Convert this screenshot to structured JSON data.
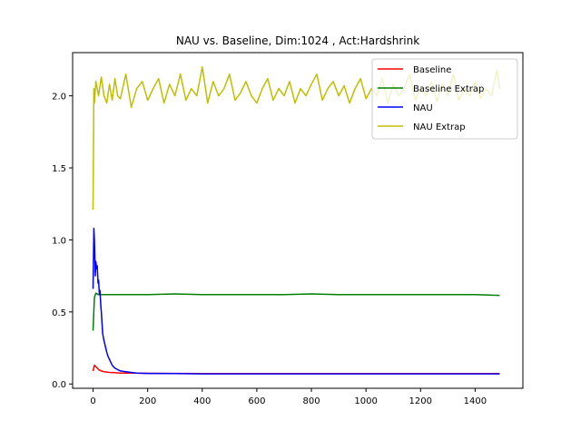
{
  "chart_data": {
    "type": "line",
    "title": "NAU vs. Baseline, Dim:1024 , Act:Hardshrink",
    "xlabel": "",
    "ylabel": "",
    "xlim": [
      -75,
      1575
    ],
    "ylim": [
      -0.03,
      2.3
    ],
    "xticks": [
      0,
      200,
      400,
      600,
      800,
      1000,
      1200,
      1400
    ],
    "yticks": [
      0.0,
      0.5,
      1.0,
      1.5,
      2.0
    ],
    "xtick_labels": [
      "0",
      "200",
      "400",
      "600",
      "800",
      "1000",
      "1200",
      "1400"
    ],
    "ytick_labels": [
      "0.0",
      "0.5",
      "1.0",
      "1.5",
      "2.0"
    ],
    "grid": false,
    "legend_position": "top-right",
    "series": [
      {
        "name": "Baseline",
        "color": "#ff0000",
        "x": [
          0,
          5,
          10,
          20,
          30,
          40,
          60,
          80,
          100,
          150,
          200,
          300,
          400,
          600,
          800,
          1000,
          1200,
          1400,
          1490
        ],
        "values": [
          0.09,
          0.13,
          0.12,
          0.1,
          0.09,
          0.085,
          0.08,
          0.078,
          0.076,
          0.075,
          0.074,
          0.073,
          0.072,
          0.072,
          0.072,
          0.072,
          0.072,
          0.072,
          0.072
        ]
      },
      {
        "name": "Baseline Extrap",
        "color": "#008000",
        "x": [
          0,
          5,
          10,
          20,
          50,
          100,
          200,
          300,
          400,
          500,
          600,
          700,
          800,
          900,
          1000,
          1100,
          1200,
          1300,
          1400,
          1490
        ],
        "values": [
          0.37,
          0.6,
          0.63,
          0.62,
          0.62,
          0.62,
          0.62,
          0.625,
          0.62,
          0.62,
          0.62,
          0.62,
          0.625,
          0.62,
          0.62,
          0.62,
          0.62,
          0.62,
          0.62,
          0.615
        ]
      },
      {
        "name": "NAU",
        "color": "#0000ff",
        "x": [
          0,
          3,
          5,
          8,
          10,
          13,
          15,
          18,
          20,
          23,
          25,
          28,
          30,
          35,
          40,
          45,
          50,
          55,
          60,
          65,
          70,
          80,
          90,
          100,
          120,
          140,
          160,
          200,
          300,
          400,
          600,
          800,
          1000,
          1200,
          1400,
          1490
        ],
        "values": [
          0.66,
          1.08,
          1.0,
          0.75,
          0.85,
          0.8,
          0.82,
          0.7,
          0.72,
          0.62,
          0.65,
          0.55,
          0.5,
          0.35,
          0.3,
          0.26,
          0.22,
          0.19,
          0.17,
          0.15,
          0.13,
          0.11,
          0.1,
          0.09,
          0.085,
          0.08,
          0.075,
          0.073,
          0.072,
          0.07,
          0.07,
          0.07,
          0.07,
          0.07,
          0.07,
          0.07
        ]
      },
      {
        "name": "NAU Extrap",
        "color": "#bfbf00",
        "x": [
          0,
          3,
          5,
          10,
          20,
          30,
          40,
          50,
          60,
          70,
          80,
          90,
          100,
          120,
          140,
          160,
          180,
          200,
          220,
          240,
          260,
          280,
          300,
          320,
          340,
          360,
          380,
          400,
          420,
          440,
          460,
          480,
          500,
          520,
          540,
          560,
          580,
          600,
          620,
          640,
          660,
          680,
          700,
          720,
          740,
          760,
          780,
          800,
          820,
          840,
          860,
          880,
          900,
          920,
          940,
          960,
          980,
          1000,
          1020,
          1040,
          1060,
          1080,
          1100,
          1120,
          1140,
          1160,
          1180,
          1200,
          1220,
          1240,
          1260,
          1280,
          1300,
          1320,
          1340,
          1360,
          1380,
          1400,
          1420,
          1440,
          1460,
          1480,
          1490
        ],
        "values": [
          1.21,
          2.05,
          1.95,
          2.1,
          2.0,
          2.13,
          2.0,
          1.95,
          2.08,
          1.97,
          2.12,
          2.0,
          1.98,
          2.15,
          1.92,
          2.05,
          2.1,
          1.97,
          2.05,
          2.12,
          1.95,
          2.08,
          2.0,
          2.15,
          1.97,
          2.05,
          2.0,
          2.2,
          1.95,
          2.1,
          2.0,
          2.05,
          2.15,
          1.97,
          2.02,
          2.1,
          2.0,
          1.95,
          2.05,
          2.12,
          1.97,
          2.05,
          2.0,
          2.1,
          1.95,
          2.05,
          2.0,
          2.08,
          2.15,
          1.97,
          2.05,
          2.1,
          2.0,
          2.07,
          1.95,
          2.05,
          2.12,
          1.98,
          2.05,
          2.0,
          2.12,
          1.95,
          2.08,
          2.0,
          2.05,
          2.15,
          1.97,
          2.05,
          2.0,
          2.1,
          1.96,
          2.08,
          2.0,
          2.15,
          1.97,
          2.05,
          2.0,
          2.1,
          1.98,
          2.05,
          2.0,
          2.18,
          2.05
        ]
      }
    ]
  }
}
